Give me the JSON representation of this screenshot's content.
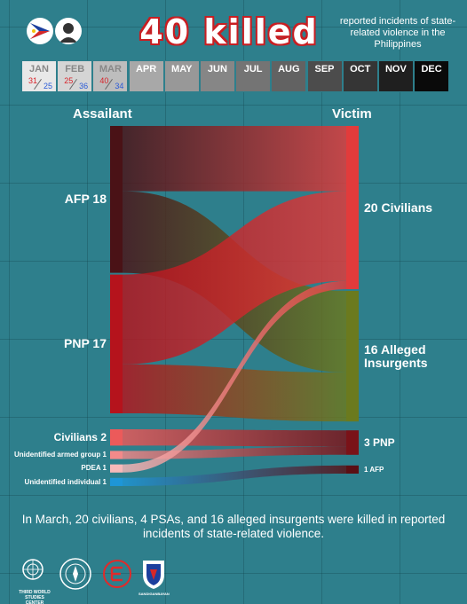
{
  "header": {
    "title": "40 killed",
    "subtitle": "reported incidents of state-related violence in the Philippines"
  },
  "months": [
    {
      "name": "JAN",
      "killed": "31",
      "prev": "25",
      "bg": "#e8e8e8",
      "fg": "#888888"
    },
    {
      "name": "FEB",
      "killed": "25",
      "prev": "36",
      "bg": "#d5d5d5",
      "fg": "#888888"
    },
    {
      "name": "MAR",
      "killed": "40",
      "prev": "34",
      "bg": "#bdbdbd",
      "fg": "#888888"
    },
    {
      "name": "APR",
      "bg": "#a8a8a8",
      "fg": "#ffffff"
    },
    {
      "name": "MAY",
      "bg": "#989898",
      "fg": "#ffffff"
    },
    {
      "name": "JUN",
      "bg": "#868686",
      "fg": "#ffffff"
    },
    {
      "name": "JUL",
      "bg": "#747474",
      "fg": "#ffffff"
    },
    {
      "name": "AUG",
      "bg": "#626262",
      "fg": "#ffffff"
    },
    {
      "name": "SEP",
      "bg": "#4c4c4c",
      "fg": "#ffffff"
    },
    {
      "name": "OCT",
      "bg": "#353535",
      "fg": "#ffffff"
    },
    {
      "name": "NOV",
      "bg": "#1f1f1f",
      "fg": "#ffffff"
    },
    {
      "name": "DEC",
      "bg": "#0a0a0a",
      "fg": "#ffffff"
    }
  ],
  "diagram": {
    "assailant_header": "Assailant",
    "victim_header": "Victim",
    "assailants": [
      {
        "label": "AFP 18",
        "value": 18,
        "color": "#4a1216"
      },
      {
        "label": "PNP 17",
        "value": 17,
        "color": "#b5131c"
      },
      {
        "label": "Civilians 2",
        "value": 2,
        "color": "#ec5a5a"
      },
      {
        "label": "Unidentified armed group 1",
        "value": 1,
        "color": "#f28a8a"
      },
      {
        "label": "PDEA 1",
        "value": 1,
        "color": "#f7b9b9"
      },
      {
        "label": "Unidentified individual 1",
        "value": 1,
        "color": "#1e96d6"
      }
    ],
    "victims": [
      {
        "label": "20 Civilians",
        "value": 20,
        "color": "#e23b3b"
      },
      {
        "label": "16 Alleged Insurgents",
        "value": 16,
        "color": "#6b7a1e"
      },
      {
        "label": "3 PNP",
        "value": 3,
        "color": "#7a1218"
      },
      {
        "label": "1 AFP",
        "value": 1,
        "color": "#5a0f14"
      }
    ],
    "flows": [
      {
        "from": 0,
        "to": 0,
        "value": 8
      },
      {
        "from": 0,
        "to": 1,
        "value": 10
      },
      {
        "from": 1,
        "to": 0,
        "value": 11
      },
      {
        "from": 1,
        "to": 1,
        "value": 6
      },
      {
        "from": 2,
        "to": 2,
        "value": 2
      },
      {
        "from": 3,
        "to": 2,
        "value": 1
      },
      {
        "from": 4,
        "to": 0,
        "value": 1
      },
      {
        "from": 5,
        "to": 3,
        "value": 1
      }
    ]
  },
  "caption": "In March, 20 civilians, 4 PSAs, and 16 alleged insurgents were killed in reported incidents of state-related violence.",
  "logos": {
    "left_logo_text": "THIRD WORLD STUDIES CENTER",
    "right_logo_text": "SANDIGANBAYAN"
  }
}
